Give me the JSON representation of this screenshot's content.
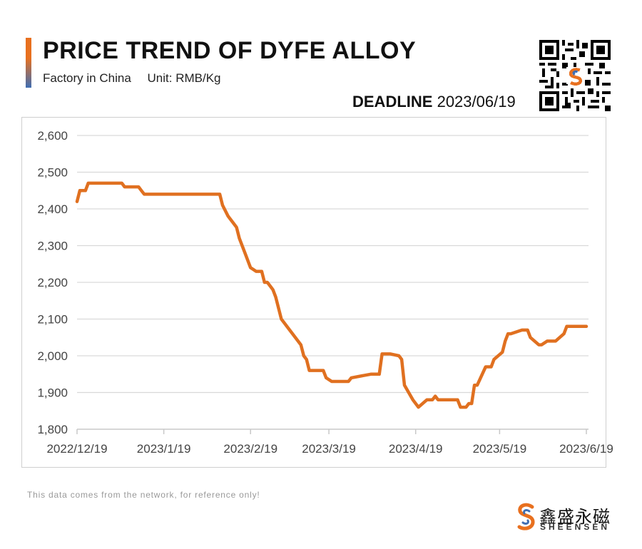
{
  "header": {
    "title": "PRICE TREND OF DYFE ALLOY",
    "subtitle_source": "Factory in China",
    "subtitle_unit": "Unit: RMB/Kg",
    "deadline_label": "DEADLINE",
    "deadline_date": "2023/06/19",
    "qr_icon": "qr-code-icon"
  },
  "colors": {
    "line": "#e07020",
    "accent_orange": "#e8701f",
    "accent_blue": "#3f6eb3",
    "grid": "#d9d9d9"
  },
  "chart_data": {
    "type": "line",
    "title": "PRICE TREND OF DYFE ALLOY",
    "ylabel": "",
    "xlabel": "",
    "ylim": [
      1800,
      2600
    ],
    "yticks": [
      1800,
      1900,
      2000,
      2100,
      2200,
      2300,
      2400,
      2500,
      2600
    ],
    "ytick_labels": [
      "1,800",
      "1,900",
      "2,000",
      "2,100",
      "2,200",
      "2,300",
      "2,400",
      "2,500",
      "2,600"
    ],
    "xlim": [
      "2022-12-19",
      "2023-06-19"
    ],
    "xticks": [
      "2022-12-19",
      "2023-01-19",
      "2023-02-19",
      "2023-03-19",
      "2023-04-19",
      "2023-05-19",
      "2023-06-19"
    ],
    "xtick_labels": [
      "2022/12/19",
      "2023/1/19",
      "2023/2/19",
      "2023/3/19",
      "2023/4/19",
      "2023/5/19",
      "2023/6/19"
    ],
    "grid": "horizontal",
    "legend": "none",
    "series": [
      {
        "name": "",
        "x": [
          "2022-12-19",
          "2022-12-20",
          "2022-12-22",
          "2022-12-23",
          "2022-12-24",
          "2022-12-25",
          "2023-01-04",
          "2023-01-05",
          "2023-01-06",
          "2023-01-10",
          "2023-01-11",
          "2023-01-12",
          "2023-02-08",
          "2023-02-09",
          "2023-02-11",
          "2023-02-13",
          "2023-02-14",
          "2023-02-15",
          "2023-02-17",
          "2023-02-19",
          "2023-02-20",
          "2023-02-21",
          "2023-02-23",
          "2023-02-24",
          "2023-02-25",
          "2023-02-26",
          "2023-02-27",
          "2023-02-28",
          "2023-03-02",
          "2023-03-03",
          "2023-03-09",
          "2023-03-10",
          "2023-03-11",
          "2023-03-12",
          "2023-03-16",
          "2023-03-17",
          "2023-03-18",
          "2023-03-20",
          "2023-03-22",
          "2023-03-26",
          "2023-03-27",
          "2023-04-03",
          "2023-04-06",
          "2023-04-07",
          "2023-04-08",
          "2023-04-10",
          "2023-04-13",
          "2023-04-14",
          "2023-04-15",
          "2023-04-18",
          "2023-04-20",
          "2023-04-23",
          "2023-04-25",
          "2023-04-26",
          "2023-04-27",
          "2023-05-04",
          "2023-05-05",
          "2023-05-07",
          "2023-05-08",
          "2023-05-09",
          "2023-05-10",
          "2023-05-11",
          "2023-05-14",
          "2023-05-16",
          "2023-05-17",
          "2023-05-20",
          "2023-05-21",
          "2023-05-22",
          "2023-05-23",
          "2023-05-27",
          "2023-05-29",
          "2023-05-30",
          "2023-06-02",
          "2023-06-03",
          "2023-06-05",
          "2023-06-08",
          "2023-06-11",
          "2023-06-12",
          "2023-06-13",
          "2023-06-19"
        ],
        "values": [
          2420,
          2450,
          2450,
          2470,
          2470,
          2470,
          2470,
          2460,
          2460,
          2460,
          2450,
          2440,
          2440,
          2410,
          2380,
          2360,
          2350,
          2320,
          2280,
          2240,
          2235,
          2230,
          2230,
          2200,
          2200,
          2190,
          2180,
          2160,
          2100,
          2090,
          2030,
          2000,
          1990,
          1960,
          1960,
          1960,
          1940,
          1930,
          1930,
          1930,
          1940,
          1950,
          1950,
          2005,
          2005,
          2005,
          2000,
          1990,
          1920,
          1880,
          1860,
          1880,
          1880,
          1890,
          1880,
          1880,
          1860,
          1860,
          1870,
          1870,
          1920,
          1920,
          1970,
          1970,
          1990,
          2010,
          2040,
          2060,
          2060,
          2070,
          2070,
          2050,
          2030,
          2030,
          2040,
          2040,
          2060,
          2080,
          2080,
          2080
        ]
      }
    ]
  },
  "footer": {
    "note": "This data comes from the network, for reference only!",
    "brand_cn": "鑫盛永磁",
    "brand_en": "SHEENSEN",
    "brand_icon": "sheensen-logo-icon"
  }
}
